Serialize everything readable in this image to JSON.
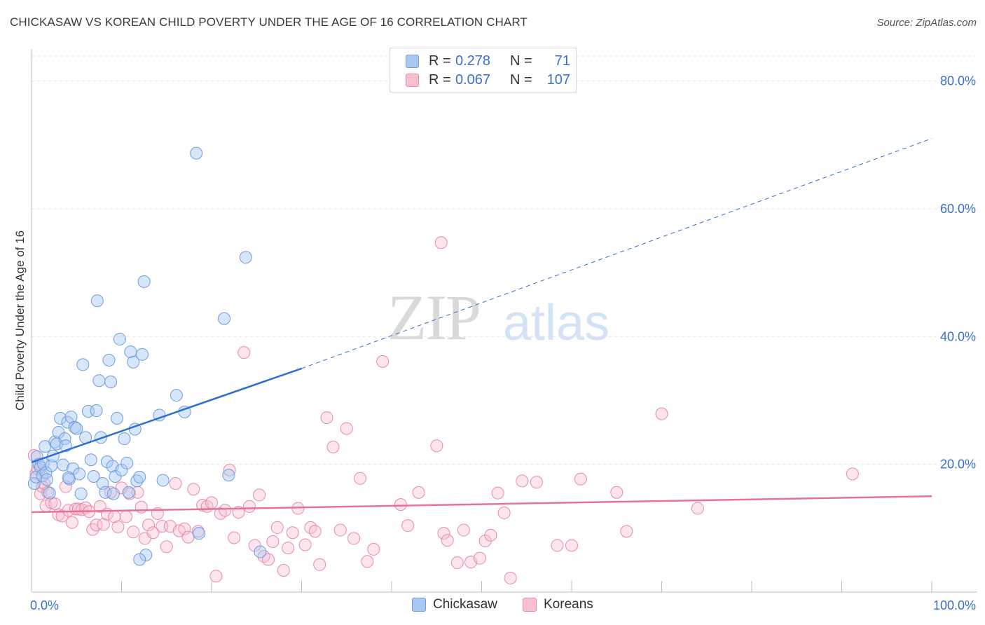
{
  "title": "CHICKASAW VS KOREAN CHILD POVERTY UNDER THE AGE OF 16 CORRELATION CHART",
  "source": "Source: ZipAtlas.com",
  "watermark": {
    "zip": "ZIP",
    "atlas": "atlas"
  },
  "legend": {
    "rows": [
      {
        "r_label": "R =",
        "r_value": "0.278",
        "n_label": "N =",
        "n_value": "71",
        "color": "#a9c8f2",
        "border": "#6d9de0"
      },
      {
        "r_label": "R =",
        "r_value": "0.067",
        "n_label": "N =",
        "n_value": "107",
        "color": "#f7bfd2",
        "border": "#e98aa8"
      }
    ]
  },
  "bottom_legend": [
    {
      "label": "Chickasaw",
      "color": "#a9c8f2",
      "border": "#6d9de0"
    },
    {
      "label": "Koreans",
      "color": "#f7bfd2",
      "border": "#e98aa8"
    }
  ],
  "chart_data": {
    "type": "scatter",
    "title": "CHICKASAW VS KOREAN CHILD POVERTY UNDER THE AGE OF 16 CORRELATION CHART",
    "ylabel": "Child Poverty Under the Age of 16",
    "xlabel": "",
    "xlim": [
      0,
      100
    ],
    "ylim": [
      0,
      85
    ],
    "x_tick_labels": [
      "0.0%",
      "100.0%"
    ],
    "y_ticks": [
      20,
      40,
      60,
      80
    ],
    "y_tick_labels": [
      "20.0%",
      "40.0%",
      "60.0%",
      "80.0%"
    ],
    "grid": true,
    "colors": {
      "chickasaw": "#6d9de0",
      "koreans": "#e98aa8",
      "trend_blue": "#2f6fd0",
      "trend_pink": "#e8719a",
      "tick_label": "#3a6fcf"
    },
    "series": [
      {
        "name": "Chickasaw",
        "trend": {
          "x0": 0,
          "y0": 20.3,
          "x1": 30,
          "y1": 35.0,
          "dash_to_x": 100,
          "dash_to_y": 71.0
        },
        "points": [
          [
            0.3,
            17.0
          ],
          [
            0.5,
            18.0
          ],
          [
            0.6,
            21.2
          ],
          [
            0.8,
            20.0
          ],
          [
            1.0,
            19.5
          ],
          [
            1.2,
            18.2
          ],
          [
            1.3,
            20.1
          ],
          [
            1.5,
            22.8
          ],
          [
            1.6,
            18.7
          ],
          [
            1.7,
            17.6
          ],
          [
            2.0,
            15.5
          ],
          [
            2.2,
            19.8
          ],
          [
            2.4,
            21.3
          ],
          [
            2.6,
            23.5
          ],
          [
            2.8,
            23.2
          ],
          [
            3.0,
            25.0
          ],
          [
            3.2,
            27.2
          ],
          [
            3.5,
            19.9
          ],
          [
            3.7,
            24.0
          ],
          [
            3.8,
            22.9
          ],
          [
            4.0,
            26.6
          ],
          [
            4.2,
            17.7
          ],
          [
            4.4,
            27.4
          ],
          [
            4.6,
            19.3
          ],
          [
            4.8,
            25.8
          ],
          [
            5.0,
            25.6
          ],
          [
            5.3,
            18.5
          ],
          [
            5.5,
            15.4
          ],
          [
            5.7,
            35.6
          ],
          [
            6.0,
            24.2
          ],
          [
            6.3,
            28.3
          ],
          [
            6.6,
            20.7
          ],
          [
            6.9,
            18.1
          ],
          [
            7.2,
            28.4
          ],
          [
            7.5,
            33.1
          ],
          [
            7.7,
            24.2
          ],
          [
            7.9,
            17.0
          ],
          [
            8.2,
            15.6
          ],
          [
            8.4,
            20.4
          ],
          [
            8.6,
            36.3
          ],
          [
            8.8,
            32.9
          ],
          [
            9.0,
            19.7
          ],
          [
            9.3,
            18.1
          ],
          [
            9.5,
            27.2
          ],
          [
            9.8,
            39.6
          ],
          [
            10.0,
            19.1
          ],
          [
            10.3,
            24.0
          ],
          [
            10.6,
            20.2
          ],
          [
            10.8,
            15.6
          ],
          [
            11.0,
            37.6
          ],
          [
            11.3,
            36.0
          ],
          [
            11.5,
            25.5
          ],
          [
            11.7,
            17.4
          ],
          [
            12.0,
            18.0
          ],
          [
            12.3,
            37.2
          ],
          [
            12.5,
            48.6
          ],
          [
            12.7,
            5.8
          ],
          [
            14.2,
            27.7
          ],
          [
            14.6,
            17.5
          ],
          [
            16.1,
            30.8
          ],
          [
            17.0,
            28.2
          ],
          [
            18.3,
            68.7
          ],
          [
            18.6,
            9.2
          ],
          [
            21.4,
            42.8
          ],
          [
            21.9,
            18.3
          ],
          [
            23.8,
            52.4
          ],
          [
            12.0,
            5.1
          ],
          [
            7.3,
            45.6
          ],
          [
            4.1,
            17.9
          ],
          [
            9.1,
            15.4
          ],
          [
            25.4,
            6.3
          ]
        ]
      },
      {
        "name": "Koreans",
        "trend": {
          "x0": 0,
          "y0": 12.5,
          "x1": 100,
          "y1": 15.0
        },
        "points": [
          [
            0.3,
            21.4
          ],
          [
            0.5,
            18.6
          ],
          [
            0.7,
            19.3
          ],
          [
            1.0,
            15.4
          ],
          [
            1.2,
            16.5
          ],
          [
            1.4,
            17.0
          ],
          [
            1.6,
            13.5
          ],
          [
            1.8,
            15.6
          ],
          [
            2.2,
            14.0
          ],
          [
            2.6,
            13.8
          ],
          [
            3.0,
            12.1
          ],
          [
            3.4,
            11.9
          ],
          [
            3.8,
            16.5
          ],
          [
            4.1,
            12.8
          ],
          [
            4.5,
            10.9
          ],
          [
            4.9,
            13.0
          ],
          [
            5.2,
            13.0
          ],
          [
            5.6,
            12.9
          ],
          [
            6.0,
            13.2
          ],
          [
            6.4,
            12.6
          ],
          [
            6.8,
            9.8
          ],
          [
            7.2,
            10.5
          ],
          [
            7.6,
            13.4
          ],
          [
            8.0,
            10.6
          ],
          [
            8.4,
            12.2
          ],
          [
            8.8,
            15.6
          ],
          [
            9.2,
            11.8
          ],
          [
            9.6,
            10.2
          ],
          [
            10.0,
            16.3
          ],
          [
            10.5,
            11.8
          ],
          [
            10.9,
            15.4
          ],
          [
            11.3,
            9.4
          ],
          [
            11.8,
            15.6
          ],
          [
            12.2,
            13.3
          ],
          [
            12.6,
            8.4
          ],
          [
            13.0,
            10.5
          ],
          [
            13.5,
            9.3
          ],
          [
            14.0,
            12.3
          ],
          [
            14.5,
            10.3
          ],
          [
            15.0,
            7.1
          ],
          [
            15.4,
            10.3
          ],
          [
            16.0,
            17.0
          ],
          [
            16.4,
            9.6
          ],
          [
            17.0,
            9.9
          ],
          [
            17.4,
            8.6
          ],
          [
            18.0,
            16.1
          ],
          [
            18.5,
            9.5
          ],
          [
            19.0,
            13.6
          ],
          [
            19.5,
            13.4
          ],
          [
            20.0,
            14.0
          ],
          [
            20.5,
            2.5
          ],
          [
            21.0,
            12.3
          ],
          [
            21.5,
            12.8
          ],
          [
            22.0,
            19.1
          ],
          [
            22.5,
            8.5
          ],
          [
            23.0,
            12.5
          ],
          [
            23.6,
            37.5
          ],
          [
            24.2,
            13.4
          ],
          [
            24.8,
            7.3
          ],
          [
            25.3,
            15.2
          ],
          [
            25.8,
            5.6
          ],
          [
            26.3,
            5.1
          ],
          [
            26.8,
            7.9
          ],
          [
            27.3,
            10.1
          ],
          [
            28.0,
            3.4
          ],
          [
            28.5,
            6.9
          ],
          [
            29.0,
            9.3
          ],
          [
            29.6,
            13.1
          ],
          [
            30.4,
            7.4
          ],
          [
            31.0,
            10.1
          ],
          [
            31.5,
            9.5
          ],
          [
            32.0,
            4.3
          ],
          [
            32.8,
            27.3
          ],
          [
            33.5,
            22.7
          ],
          [
            34.3,
            9.7
          ],
          [
            35.0,
            25.6
          ],
          [
            35.8,
            8.4
          ],
          [
            36.5,
            17.8
          ],
          [
            37.3,
            4.8
          ],
          [
            38.0,
            6.7
          ],
          [
            39.0,
            36.1
          ],
          [
            41.0,
            13.7
          ],
          [
            41.8,
            10.4
          ],
          [
            43.0,
            15.6
          ],
          [
            45.0,
            22.9
          ],
          [
            45.5,
            54.7
          ],
          [
            45.8,
            9.2
          ],
          [
            46.2,
            8.1
          ],
          [
            47.3,
            4.6
          ],
          [
            48.0,
            9.7
          ],
          [
            48.8,
            4.7
          ],
          [
            49.8,
            5.3
          ],
          [
            50.4,
            8.0
          ],
          [
            51.0,
            8.9
          ],
          [
            51.8,
            15.5
          ],
          [
            52.5,
            12.4
          ],
          [
            53.2,
            2.2
          ],
          [
            54.5,
            17.4
          ],
          [
            56.1,
            17.2
          ],
          [
            58.4,
            7.3
          ],
          [
            60.0,
            7.3
          ],
          [
            61.0,
            17.7
          ],
          [
            65.0,
            15.6
          ],
          [
            66.1,
            9.5
          ],
          [
            70.0,
            27.9
          ],
          [
            74.0,
            13.1
          ],
          [
            91.2,
            18.5
          ]
        ]
      }
    ]
  }
}
